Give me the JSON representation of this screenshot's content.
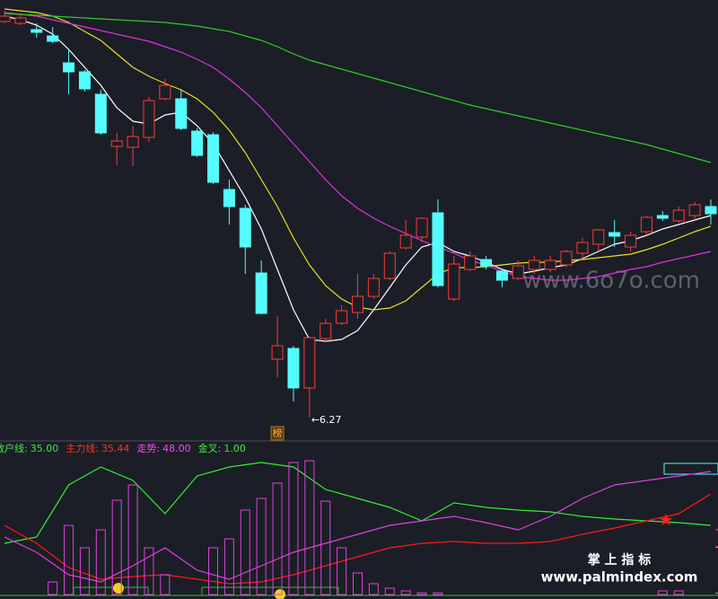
{
  "chart_data": [
    {
      "type": "candlestick",
      "categories": [
        null,
        null,
        null,
        null,
        null,
        null,
        null,
        null,
        null,
        null,
        null,
        null,
        null,
        null,
        null,
        null,
        null,
        null,
        null,
        null,
        null,
        null,
        null,
        null,
        null,
        null,
        null,
        null,
        null,
        null,
        null,
        null,
        null,
        null,
        null,
        null,
        null,
        null,
        null,
        null,
        null,
        null,
        null,
        null,
        null
      ],
      "open": [
        10.68,
        10.66,
        10.59,
        10.52,
        10.22,
        10.12,
        9.87,
        9.29,
        9.28,
        9.39,
        9.82,
        9.82,
        9.46,
        9.42,
        8.81,
        8.6,
        7.88,
        6.92,
        7.04,
        6.6,
        7.15,
        7.32,
        7.44,
        7.62,
        7.82,
        8.16,
        8.28,
        8.55,
        7.59,
        7.92,
        8.03,
        7.9,
        7.82,
        7.92,
        7.92,
        7.97,
        8.1,
        8.2,
        8.33,
        8.17,
        8.34,
        8.52,
        8.46,
        8.52,
        8.62
      ],
      "close": [
        10.74,
        10.72,
        10.56,
        10.46,
        10.12,
        9.93,
        9.44,
        9.35,
        9.4,
        9.8,
        9.97,
        9.49,
        9.19,
        8.89,
        8.62,
        8.17,
        7.43,
        7.07,
        6.6,
        7.16,
        7.32,
        7.46,
        7.62,
        7.82,
        8.1,
        8.3,
        8.49,
        7.74,
        7.98,
        8.07,
        7.96,
        7.8,
        7.96,
        8.02,
        8.02,
        8.12,
        8.22,
        8.36,
        8.29,
        8.3,
        8.5,
        8.49,
        8.58,
        8.64,
        8.54
      ],
      "high": [
        10.8,
        10.78,
        10.66,
        10.62,
        10.37,
        10.14,
        9.92,
        9.44,
        9.52,
        9.84,
        10.04,
        9.92,
        9.49,
        9.45,
        8.92,
        8.64,
        8.02,
        7.4,
        7.07,
        7.17,
        7.37,
        7.52,
        7.87,
        7.87,
        8.12,
        8.47,
        8.5,
        8.7,
        8.07,
        8.12,
        8.07,
        7.92,
        8.02,
        8.07,
        8.07,
        8.14,
        8.27,
        8.37,
        8.47,
        8.34,
        8.52,
        8.57,
        8.62,
        8.67,
        8.7
      ],
      "low": [
        10.66,
        10.64,
        10.5,
        10.44,
        9.87,
        9.9,
        9.42,
        9.08,
        9.07,
        9.34,
        9.8,
        9.47,
        9.17,
        8.87,
        8.42,
        7.87,
        7.42,
        6.72,
        6.45,
        6.27,
        7.12,
        7.3,
        7.37,
        7.59,
        7.8,
        8.14,
        8.22,
        7.72,
        7.57,
        7.9,
        7.92,
        7.72,
        7.8,
        7.87,
        7.89,
        7.94,
        8.02,
        8.12,
        8.17,
        8.12,
        8.3,
        8.46,
        8.44,
        8.47,
        8.42
      ],
      "up_color": "#ff3a3a",
      "down_color": "#54fcfc",
      "ylim": [
        6.02,
        10.92
      ],
      "lines": [
        {
          "color": "#ffffff",
          "values": [
            10.74,
            10.7,
            10.64,
            10.54,
            10.37,
            10.17,
            9.97,
            9.72,
            9.57,
            9.54,
            9.64,
            9.67,
            9.52,
            9.32,
            9.02,
            8.72,
            8.37,
            7.92,
            7.47,
            7.14,
            7.12,
            7.14,
            7.24,
            7.47,
            7.72,
            7.97,
            8.17,
            8.22,
            8.12,
            8.07,
            8.0,
            7.92,
            7.87,
            7.9,
            7.94,
            7.97,
            8.04,
            8.12,
            8.2,
            8.24,
            8.3,
            8.37,
            8.42,
            8.47,
            8.52
          ]
        },
        {
          "color": "#e8e020",
          "values": [
            10.82,
            10.8,
            10.78,
            10.74,
            10.67,
            10.57,
            10.47,
            10.32,
            10.17,
            10.07,
            9.99,
            9.92,
            9.82,
            9.67,
            9.47,
            9.22,
            8.92,
            8.62,
            8.27,
            7.97,
            7.74,
            7.59,
            7.5,
            7.47,
            7.49,
            7.57,
            7.72,
            7.87,
            7.94,
            7.94,
            7.95,
            7.97,
            7.99,
            8.0,
            8.0,
            8.02,
            8.03,
            8.05,
            8.07,
            8.09,
            8.14,
            8.2,
            8.27,
            8.34,
            8.4
          ]
        },
        {
          "color": "#e030e0",
          "values": [
            10.78,
            10.76,
            10.74,
            10.7,
            10.66,
            10.62,
            10.58,
            10.54,
            10.5,
            10.46,
            10.4,
            10.34,
            10.26,
            10.17,
            10.04,
            9.89,
            9.72,
            9.52,
            9.32,
            9.12,
            8.92,
            8.74,
            8.6,
            8.49,
            8.4,
            8.32,
            8.24,
            8.17,
            8.1,
            8.02,
            7.97,
            7.9,
            7.84,
            7.82,
            7.8,
            7.8,
            7.82,
            7.84,
            7.88,
            7.92,
            7.95,
            8.0,
            8.04,
            8.08,
            8.12
          ]
        },
        {
          "color": "#30c830",
          "values": [
            10.77,
            10.76,
            10.75,
            10.74,
            10.73,
            10.72,
            10.71,
            10.7,
            10.69,
            10.68,
            10.67,
            10.65,
            10.63,
            10.6,
            10.57,
            10.52,
            10.47,
            10.4,
            10.32,
            10.25,
            10.2,
            10.15,
            10.1,
            10.05,
            10.0,
            9.95,
            9.9,
            9.85,
            9.8,
            9.75,
            9.71,
            9.67,
            9.63,
            9.59,
            9.55,
            9.51,
            9.47,
            9.43,
            9.39,
            9.35,
            9.31,
            9.26,
            9.21,
            9.16,
            9.11
          ]
        }
      ],
      "annotation": "←6.27",
      "badge": "榜"
    },
    {
      "type": "indicator-lines",
      "categories": [
        null,
        null,
        null,
        null,
        null,
        null,
        null,
        null,
        null,
        null,
        null,
        null,
        null,
        null,
        null,
        null,
        null,
        null,
        null,
        null,
        null,
        null,
        null
      ],
      "ylim": [
        0,
        105
      ],
      "readouts": [
        {
          "name": "散户线:",
          "value": 35,
          "label": "35.00",
          "color": "#40e840"
        },
        {
          "name": "主力线:",
          "value": 35.44,
          "label": "35.44",
          "color": "#ff3030"
        },
        {
          "name": "走势:",
          "value": 48,
          "label": "48.00",
          "color": "#ff40ff"
        },
        {
          "name": "金叉:",
          "value": 1,
          "label": "1.00",
          "color": "#40e840"
        }
      ],
      "series": [
        {
          "color": "#30f030",
          "values": [
            38,
            42.7,
            81.3,
            94.7,
            84.7,
            60,
            88,
            94.7,
            98,
            94.7,
            78,
            71.3,
            64.7,
            54.7,
            68,
            64.7,
            62.7,
            61.3,
            58,
            56,
            54.7,
            53.3,
            51.3
          ]
        },
        {
          "color": "#ff1a1a",
          "values": [
            51.3,
            38,
            20,
            11.3,
            13.3,
            14.7,
            11.3,
            8,
            9.3,
            14.7,
            21.3,
            28,
            34.7,
            38,
            39.3,
            38,
            38,
            39.3,
            44.7,
            49.3,
            54.7,
            60,
            74.7
          ]
        },
        {
          "color": "#e040e0",
          "values": [
            42.7,
            31.3,
            14.7,
            9.3,
            21.3,
            34.7,
            18,
            11.3,
            21.3,
            31.3,
            38,
            44.7,
            51.3,
            54.7,
            58,
            53.3,
            48,
            58,
            71.3,
            81.3,
            84.7,
            88,
            91.3
          ]
        }
      ]
    },
    {
      "type": "indicator-bars",
      "categories": [
        null,
        null,
        null,
        null,
        null,
        null,
        null,
        null,
        null,
        null,
        null,
        null,
        null,
        null,
        null,
        null,
        null,
        null,
        null,
        null,
        null,
        null,
        null,
        null,
        null,
        null,
        null,
        null,
        null,
        null,
        null,
        null,
        null,
        null,
        null,
        null,
        null,
        null,
        null,
        null,
        null,
        null,
        null,
        null,
        null
      ],
      "ylim": [
        0,
        105
      ],
      "color": "#e040e0",
      "values": [
        null,
        null,
        null,
        9.3,
        51.3,
        34.7,
        48,
        70,
        81.3,
        34.7,
        14.7,
        null,
        null,
        34.7,
        41.3,
        62.7,
        71.3,
        82.7,
        98,
        99.3,
        69.3,
        34.7,
        16,
        8,
        4.7,
        2.7,
        1.3,
        1.3,
        null,
        null,
        null,
        null,
        null,
        null,
        null,
        null,
        null,
        null,
        null,
        null,
        null,
        2.7,
        2.7,
        null,
        null
      ]
    }
  ],
  "watermark": "www.6o7o.com",
  "brand": "掌 上 指 标",
  "site": "www.palmindex.com"
}
